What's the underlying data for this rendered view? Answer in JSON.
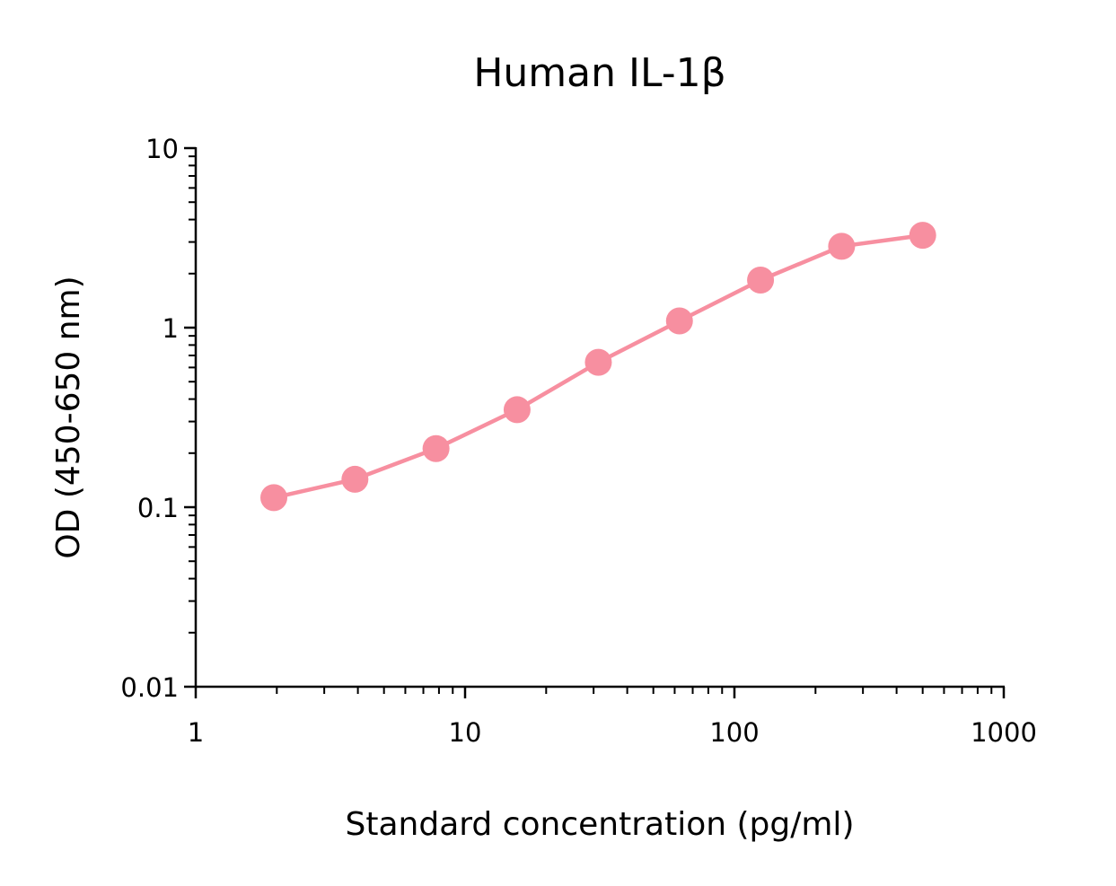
{
  "chart_data": {
    "type": "line",
    "title": "Human IL-1β",
    "xlabel": "Standard concentration (pg/ml)",
    "ylabel": "OD (450-650 nm)",
    "x_scale": "log",
    "y_scale": "log",
    "xlim": [
      1,
      1000
    ],
    "ylim": [
      0.01,
      10
    ],
    "x_ticks": [
      1,
      10,
      100,
      1000
    ],
    "x_tick_labels": [
      "1",
      "10",
      "100",
      "1000"
    ],
    "y_ticks": [
      0.01,
      0.1,
      1,
      10
    ],
    "y_tick_labels": [
      "0.01",
      "0.1",
      "1",
      "10"
    ],
    "grid": false,
    "legend": "none",
    "series": [
      {
        "color": "#f78fa0",
        "marker": "circle",
        "x": [
          1.95,
          3.9,
          7.8,
          15.6,
          31.25,
          62.5,
          125,
          250,
          500
        ],
        "y": [
          0.113,
          0.143,
          0.212,
          0.349,
          0.641,
          1.09,
          1.84,
          2.84,
          3.27
        ]
      }
    ]
  }
}
